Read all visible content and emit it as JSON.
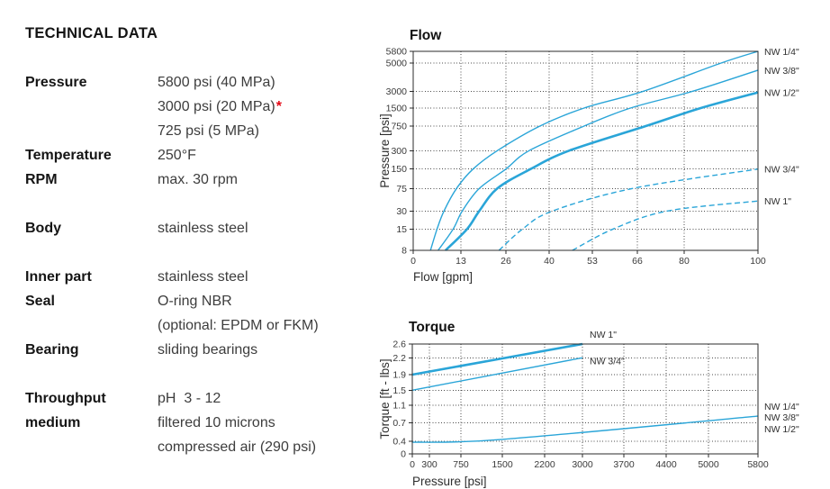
{
  "panel": {
    "title": "TECHNICAL DATA",
    "rows": [
      {
        "label": "Pressure",
        "value": "5800 psi (40 MPa)",
        "star": ""
      },
      {
        "label": "",
        "value": "3000 psi (20 MPa)",
        "star": "*"
      },
      {
        "label": "",
        "value": "725 psi (5 MPa)",
        "star": ""
      },
      {
        "label": "Temperature",
        "value": "250°F",
        "star": ""
      },
      {
        "label": "RPM",
        "value": "max. 30 rpm",
        "star": ""
      },
      {
        "label": "",
        "value": "",
        "star": ""
      },
      {
        "label": "Body",
        "value": "stainless steel",
        "star": ""
      },
      {
        "label": "",
        "value": "",
        "star": ""
      },
      {
        "label": "Inner part",
        "value": "stainless steel",
        "star": ""
      },
      {
        "label": "Seal",
        "value": "O-ring NBR",
        "star": ""
      },
      {
        "label": "",
        "value": "(optional: EPDM or FKM)",
        "star": ""
      },
      {
        "label": "Bearing",
        "value": "sliding bearings",
        "star": ""
      },
      {
        "label": "",
        "value": "",
        "star": ""
      },
      {
        "label": "Throughput",
        "value": "pH  3 - 12",
        "star": ""
      },
      {
        "label": "medium",
        "value": "filtered 10 microns",
        "star": ""
      },
      {
        "label": "",
        "value": "compressed air (290 psi)",
        "star": ""
      }
    ]
  },
  "colors": {
    "accent_blue": "#2aa5d8",
    "star_red": "#e30613",
    "grid": "#4d4d4d",
    "border": "#2b2b2b",
    "tick_text": "#3a3a3a",
    "label_text": "#2e2e2e",
    "title_text": "#111111"
  },
  "chart_data": [
    {
      "id": "flow",
      "type": "line",
      "title": "Flow",
      "xlabel": "Flow [gpm]",
      "ylabel": "Pressure [psi]",
      "x_ticks": [
        0,
        13,
        26,
        40,
        53,
        66,
        80,
        100
      ],
      "y_ticks": [
        8,
        15,
        30,
        75,
        150,
        300,
        750,
        1500,
        3000,
        5000,
        5800
      ],
      "x_range": [
        0,
        100
      ],
      "y_range": [
        8,
        5800
      ],
      "y_scale": "log",
      "grid": true,
      "legend_position": "right-edge-labels",
      "series": [
        {
          "name": "NW 1/4\"",
          "style": "solid",
          "weight": "thin",
          "points": [
            [
              4.7,
              8
            ],
            [
              6.5,
              15
            ],
            [
              8.4,
              30
            ],
            [
              11.8,
              75
            ],
            [
              16.5,
              150
            ],
            [
              23.5,
              300
            ],
            [
              37,
              750
            ],
            [
              50.5,
              1500
            ],
            [
              67.5,
              3000
            ],
            [
              90,
              5000
            ],
            [
              100,
              5800
            ]
          ],
          "labels": [
            {
              "text": "NW 1/4\"",
              "dx": 7,
              "dy": 4
            }
          ]
        },
        {
          "name": "NW 3/8\"",
          "style": "solid",
          "weight": "thin",
          "points": [
            [
              6.8,
              8
            ],
            [
              10.9,
              15
            ],
            [
              13.4,
              30
            ],
            [
              18.3,
              75
            ],
            [
              26,
              150
            ],
            [
              33.5,
              300
            ],
            [
              50.5,
              750
            ],
            [
              64,
              1500
            ],
            [
              82,
              3000
            ],
            [
              100,
              4400
            ]
          ],
          "labels": [
            {
              "text": "NW 3/8\"",
              "dx": 7,
              "dy": 4
            }
          ]
        },
        {
          "name": "NW 1/2\"",
          "style": "solid",
          "weight": "thick",
          "points": [
            [
              8.8,
              8
            ],
            [
              14.8,
              15
            ],
            [
              18.3,
              30
            ],
            [
              23.5,
              75
            ],
            [
              34,
              150
            ],
            [
              46,
              300
            ],
            [
              68.5,
              750
            ],
            [
              84.5,
              1500
            ],
            [
              100,
              2900
            ]
          ],
          "labels": [
            {
              "text": "NW 1/2\"",
              "dx": 7,
              "dy": 4
            }
          ]
        },
        {
          "name": "NW 3/4\"",
          "style": "dashed",
          "weight": "thin",
          "points": [
            [
              24,
              8
            ],
            [
              31.4,
              15
            ],
            [
              41,
              30
            ],
            [
              64.6,
              75
            ],
            [
              100,
              150
            ]
          ],
          "labels": [
            {
              "text": "NW 3/4\"",
              "dx": 7,
              "dy": 4
            }
          ]
        },
        {
          "name": "NW 1\"",
          "style": "dashed",
          "weight": "thin",
          "points": [
            [
              47,
              8
            ],
            [
              59,
              15
            ],
            [
              75,
              30
            ],
            [
              100,
              45
            ]
          ],
          "labels": [
            {
              "text": "NW 1\"",
              "dx": 7,
              "dy": 4
            }
          ]
        }
      ]
    },
    {
      "id": "torque",
      "type": "line",
      "title": "Torque",
      "xlabel": "Pressure [psi]",
      "ylabel": "Torque [ft - lbs]",
      "x_ticks": [
        0,
        300,
        750,
        1500,
        2200,
        3000,
        3700,
        4400,
        5000,
        5800
      ],
      "y_ticks": [
        0,
        0.4,
        0.7,
        1.1,
        1.5,
        1.9,
        2.2,
        2.6
      ],
      "x_range": [
        0,
        5800
      ],
      "y_range": [
        0,
        2.6
      ],
      "y_scale": "linear",
      "grid": true,
      "legend_position": "inline-and-right-edge-labels",
      "series": [
        {
          "name": "NW 1\"",
          "style": "solid",
          "weight": "thick",
          "points": [
            [
              0,
              1.9
            ],
            [
              3000,
              2.6
            ]
          ],
          "labels": [
            {
              "text": "NW 1\"",
              "dx": 8,
              "dy": -7
            }
          ]
        },
        {
          "name": "NW 3/4\"",
          "style": "solid",
          "weight": "thin",
          "points": [
            [
              0,
              1.5
            ],
            [
              3000,
              2.2
            ]
          ],
          "labels": [
            {
              "text": "NW 3/4\"",
              "dx": 8,
              "dy": 7
            }
          ]
        },
        {
          "name": "NW 1/4\" / NW 3/8\" / NW 1/2\"",
          "style": "solid",
          "weight": "thin",
          "points": [
            [
              0,
              0.37
            ],
            [
              1500,
              0.43
            ],
            [
              5800,
              0.85
            ]
          ],
          "labels": [
            {
              "text": "NW 1/4\"",
              "dx": 7,
              "dy": -7
            },
            {
              "text": "NW 3/8\"",
              "dx": 7,
              "dy": 5
            },
            {
              "text": "NW 1/2\"",
              "dx": 7,
              "dy": 18
            }
          ]
        }
      ]
    }
  ]
}
